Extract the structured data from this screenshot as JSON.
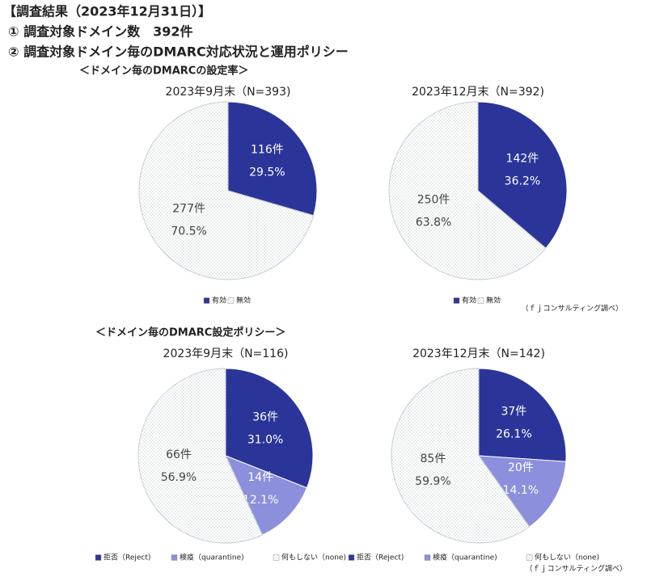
{
  "header": {
    "title": "【調査結果（2023年12月31日）】",
    "line1": "① 調査対象ドメイン数　392件",
    "line2": "② 調査対象ドメイン毎のDMARC対応状況と運用ポリシー"
  },
  "sections": [
    {
      "title": "＜ドメイン毎のDMARCの設定率＞"
    },
    {
      "title": "＜ドメイン毎のDMARC設定ポリシー＞"
    }
  ],
  "notes": [
    "（ｆｊコンサルティング調べ）",
    "（ｆｊコンサルティング調べ）"
  ],
  "chart_data": [
    {
      "type": "pie",
      "title": "2023年9月末（N=393)",
      "categories": [
        "有効",
        "無効"
      ],
      "fills": [
        "#2b3599",
        "dotted"
      ],
      "values": [
        29.5,
        70.5
      ],
      "value_labels": [
        "29.5%",
        "70.5%"
      ],
      "counts": [
        116,
        277
      ],
      "count_labels": [
        "116件",
        "277件"
      ]
    },
    {
      "type": "pie",
      "title": "2023年12月末（N=392)",
      "categories": [
        "有効",
        "無効"
      ],
      "fills": [
        "#2b3599",
        "dotted"
      ],
      "values": [
        36.2,
        63.8
      ],
      "value_labels": [
        "36.2%",
        "63.8%"
      ],
      "counts": [
        142,
        250
      ],
      "count_labels": [
        "142件",
        "250件"
      ]
    },
    {
      "type": "pie",
      "title": "2023年9月末（N=116)",
      "categories": [
        "拒否（Reject)",
        "検疫（quarantine)",
        "何もしない（none)"
      ],
      "fills": [
        "#2b3599",
        "#8b8fdc",
        "dotted"
      ],
      "values": [
        31.0,
        12.1,
        56.9
      ],
      "value_labels": [
        "31.0%",
        "12.1%",
        "56.9%"
      ],
      "counts": [
        36,
        14,
        66
      ],
      "count_labels": [
        "36件",
        "14件",
        "66件"
      ]
    },
    {
      "type": "pie",
      "title": "2023年12月末（N=142)",
      "categories": [
        "拒否（Reject)",
        "検疫（quarantine)",
        "何もしない（none)"
      ],
      "fills": [
        "#2b3599",
        "#8b8fdc",
        "dotted"
      ],
      "values": [
        26.1,
        14.1,
        59.9
      ],
      "value_labels": [
        "26.1%",
        "14.1%",
        "59.9%"
      ],
      "counts": [
        37,
        20,
        85
      ],
      "count_labels": [
        "37件",
        "20件",
        "85件"
      ]
    }
  ]
}
